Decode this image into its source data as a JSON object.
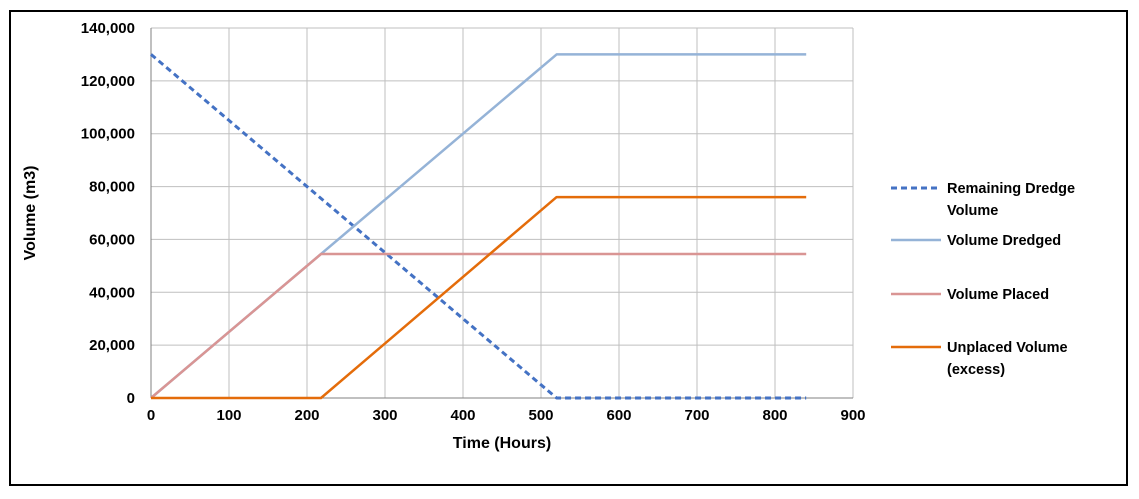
{
  "chart_data": {
    "type": "line",
    "title": "",
    "xlabel": "Time (Hours)",
    "ylabel": "Volume (m3)",
    "xlim": [
      0,
      900
    ],
    "ylim": [
      0,
      140000
    ],
    "x_ticks": [
      "0",
      "100",
      "200",
      "300",
      "400",
      "500",
      "600",
      "700",
      "800",
      "900"
    ],
    "y_ticks": [
      "0",
      "20,000",
      "40,000",
      "60,000",
      "80,000",
      "100,000",
      "120,000",
      "140,000"
    ],
    "x_tick_values": [
      0,
      100,
      200,
      300,
      400,
      500,
      600,
      700,
      800,
      900
    ],
    "y_tick_values": [
      0,
      20000,
      40000,
      60000,
      80000,
      100000,
      120000,
      140000
    ],
    "grid": true,
    "legend_position": "right",
    "series": [
      {
        "name": "Remaining Dredge Volume",
        "name_lines": [
          "Remaining Dredge",
          "Volume"
        ],
        "color": "#4472C4",
        "dash": "dashed",
        "x": [
          0,
          520,
          840
        ],
        "y": [
          130000,
          0,
          0
        ]
      },
      {
        "name": "Volume Dredged",
        "name_lines": [
          "Volume Dredged"
        ],
        "color": "#95B3D7",
        "dash": "solid",
        "x": [
          0,
          520,
          840
        ],
        "y": [
          0,
          130000,
          130000
        ]
      },
      {
        "name": "Volume Placed",
        "name_lines": [
          "Volume Placed"
        ],
        "color": "#D99594",
        "dash": "solid",
        "x": [
          0,
          218,
          840
        ],
        "y": [
          0,
          54500,
          54500
        ]
      },
      {
        "name": "Unplaced Volume (excess)",
        "name_lines": [
          "Unplaced Volume",
          "(excess)"
        ],
        "color": "#E46C0A",
        "dash": "solid",
        "x": [
          0,
          218,
          520,
          840
        ],
        "y": [
          0,
          0,
          76000,
          76000
        ]
      }
    ]
  }
}
